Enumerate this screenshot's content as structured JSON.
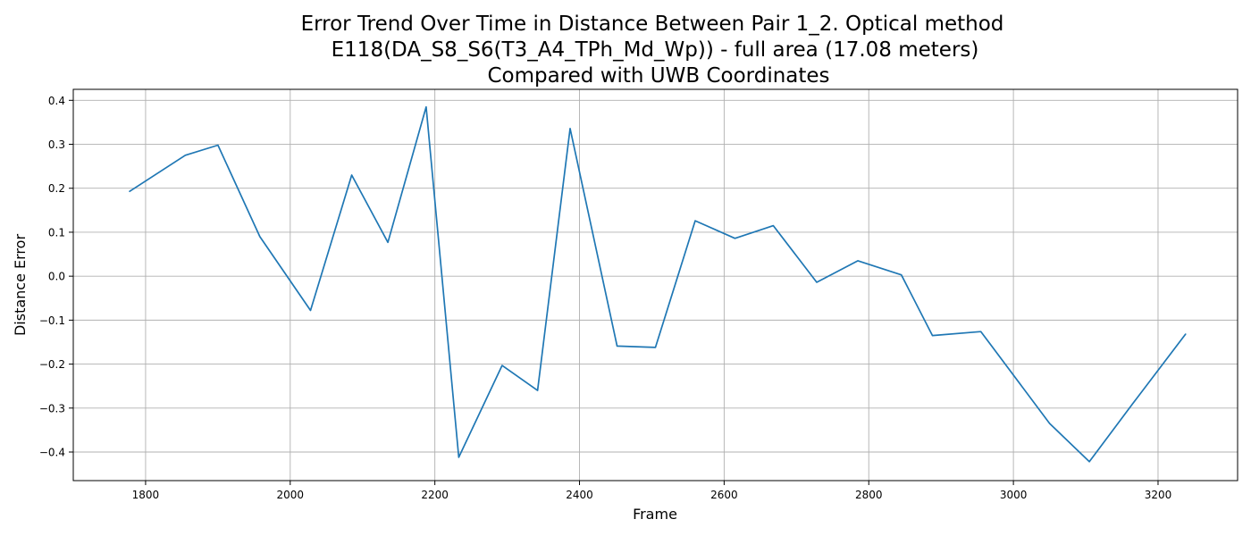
{
  "chart_data": {
    "type": "line",
    "title": [
      "Error Trend Over Time in Distance Between Pair 1_2. Optical method",
      "E118(DA_S8_S6(T3_A4_TPh_Md_Wp)) - full area (17.08 meters)",
      "Compared with UWB Coordinates"
    ],
    "xlabel": "Frame",
    "ylabel": "Distance Error",
    "xlim": [
      1700,
      3310
    ],
    "ylim": [
      -0.465,
      0.425
    ],
    "xticks": [
      1800,
      2000,
      2200,
      2400,
      2600,
      2800,
      3000,
      3200
    ],
    "yticks": [
      -0.4,
      -0.3,
      -0.2,
      -0.1,
      0.0,
      0.1,
      0.2,
      0.3,
      0.4
    ],
    "xtick_labels": [
      "1800",
      "2000",
      "2200",
      "2400",
      "2600",
      "2800",
      "3000",
      "3200"
    ],
    "ytick_labels": [
      "−0.4",
      "−0.3",
      "−0.2",
      "−0.1",
      "0.0",
      "0.1",
      "0.2",
      "0.3",
      "0.4"
    ],
    "grid": true,
    "color": "#1f77b4",
    "series": [
      {
        "x": [
          1778,
          1855,
          1900,
          1958,
          2028,
          2085,
          2135,
          2188,
          2233,
          2293,
          2342,
          2387,
          2452,
          2505,
          2560,
          2615,
          2668,
          2728,
          2785,
          2845,
          2888,
          2955,
          3050,
          3105,
          3165,
          3238
        ],
        "y": [
          0.193,
          0.275,
          0.298,
          0.09,
          -0.078,
          0.23,
          0.077,
          0.385,
          -0.412,
          -0.203,
          -0.26,
          0.336,
          -0.159,
          -0.162,
          0.126,
          0.086,
          0.115,
          -0.014,
          0.035,
          0.003,
          -0.135,
          -0.126,
          -0.335,
          -0.422,
          -0.29,
          -0.132
        ]
      }
    ]
  }
}
